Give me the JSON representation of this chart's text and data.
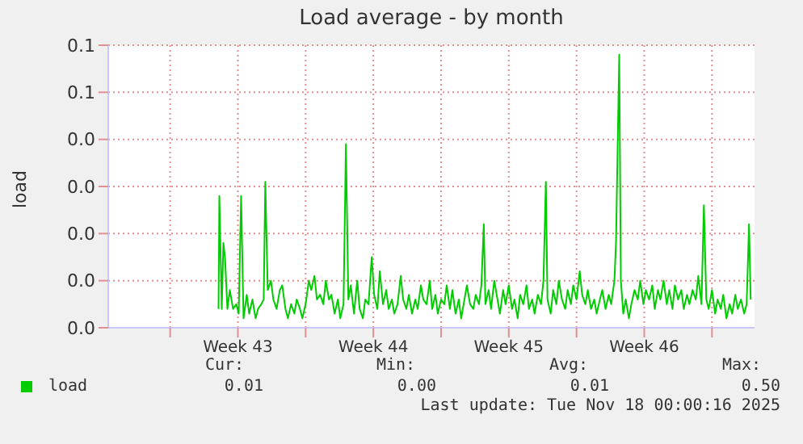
{
  "chart_data": {
    "type": "line",
    "title": "Load average - by month",
    "ylabel": "load",
    "x": [
      "2025-10-21T12:00",
      "2025-10-21T13:00",
      "2025-10-21T16:00",
      "2025-10-21T18:00",
      "2025-10-21T20:00",
      "2025-10-21T23:00",
      "2025-10-22T02:00",
      "2025-10-22T06:00",
      "2025-10-22T10:00",
      "2025-10-22T13:00",
      "2025-10-22T16:00",
      "2025-10-22T19:00",
      "2025-10-22T23:00",
      "2025-10-23T02:00",
      "2025-10-23T06:00",
      "2025-10-23T10:00",
      "2025-10-23T13:00",
      "2025-10-23T17:00",
      "2025-10-23T20:00",
      "2025-10-23T22:00",
      "2025-10-24T01:00",
      "2025-10-24T05:00",
      "2025-10-24T08:00",
      "2025-10-24T12:00",
      "2025-10-24T16:00",
      "2025-10-24T19:00",
      "2025-10-24T23:00",
      "2025-10-25T02:00",
      "2025-10-25T06:00",
      "2025-10-25T10:00",
      "2025-10-25T13:00",
      "2025-10-25T17:00",
      "2025-10-25T20:00",
      "2025-10-26T00:00",
      "2025-10-26T04:00",
      "2025-10-26T07:00",
      "2025-10-26T11:00",
      "2025-10-26T14:00",
      "2025-10-26T18:00",
      "2025-10-26T22:00",
      "2025-10-27T01:00",
      "2025-10-27T05:00",
      "2025-10-27T08:00",
      "2025-10-27T12:00",
      "2025-10-27T16:00",
      "2025-10-27T19:00",
      "2025-10-27T23:00",
      "2025-10-28T02:00",
      "2025-10-28T05:00",
      "2025-10-28T08:00",
      "2025-10-28T12:00",
      "2025-10-28T16:00",
      "2025-10-28T19:00",
      "2025-10-28T23:00",
      "2025-10-29T02:00",
      "2025-10-29T06:00",
      "2025-10-29T10:00",
      "2025-10-29T13:00",
      "2025-10-29T17:00",
      "2025-10-29T20:00",
      "2025-10-30T00:00",
      "2025-10-30T04:00",
      "2025-10-30T07:00",
      "2025-10-30T11:00",
      "2025-10-30T14:00",
      "2025-10-30T18:00",
      "2025-10-30T22:00",
      "2025-10-31T01:00",
      "2025-10-31T05:00",
      "2025-10-31T08:00",
      "2025-10-31T12:00",
      "2025-10-31T16:00",
      "2025-10-31T19:00",
      "2025-10-31T23:00",
      "2025-11-01T02:00",
      "2025-11-01T06:00",
      "2025-11-01T10:00",
      "2025-11-01T13:00",
      "2025-11-01T17:00",
      "2025-11-01T20:00",
      "2025-11-02T00:00",
      "2025-11-02T04:00",
      "2025-11-02T07:00",
      "2025-11-02T11:00",
      "2025-11-02T14:00",
      "2025-11-02T18:00",
      "2025-11-02T22:00",
      "2025-11-03T01:00",
      "2025-11-03T05:00",
      "2025-11-03T08:00",
      "2025-11-03T12:00",
      "2025-11-03T16:00",
      "2025-11-03T19:00",
      "2025-11-03T23:00",
      "2025-11-04T02:00",
      "2025-11-04T05:00",
      "2025-11-04T07:00",
      "2025-11-04T11:00",
      "2025-11-04T14:00",
      "2025-11-04T18:00",
      "2025-11-04T22:00",
      "2025-11-05T01:00",
      "2025-11-05T05:00",
      "2025-11-05T08:00",
      "2025-11-05T12:00",
      "2025-11-05T16:00",
      "2025-11-05T19:00",
      "2025-11-05T23:00",
      "2025-11-06T02:00",
      "2025-11-06T06:00",
      "2025-11-06T10:00",
      "2025-11-06T13:00",
      "2025-11-06T17:00",
      "2025-11-06T20:00",
      "2025-11-07T00:00",
      "2025-11-07T04:00",
      "2025-11-07T07:00",
      "2025-11-07T10:00",
      "2025-11-07T12:00",
      "2025-11-07T16:00",
      "2025-11-07T19:00",
      "2025-11-07T23:00",
      "2025-11-08T02:00",
      "2025-11-08T06:00",
      "2025-11-08T10:00",
      "2025-11-08T13:00",
      "2025-11-08T17:00",
      "2025-11-08T20:00",
      "2025-11-09T00:00",
      "2025-11-09T04:00",
      "2025-11-09T07:00",
      "2025-11-09T11:00",
      "2025-11-09T14:00",
      "2025-11-09T18:00",
      "2025-11-09T22:00",
      "2025-11-10T01:00",
      "2025-11-10T05:00",
      "2025-11-10T08:00",
      "2025-11-10T12:00",
      "2025-11-10T16:00",
      "2025-11-10T19:00",
      "2025-11-10T23:00",
      "2025-11-11T01:00",
      "2025-11-11T05:00",
      "2025-11-11T07:00",
      "2025-11-11T10:00",
      "2025-11-11T13:00",
      "2025-11-11T17:00",
      "2025-11-11T20:00",
      "2025-11-12T00:00",
      "2025-11-12T04:00",
      "2025-11-12T07:00",
      "2025-11-12T11:00",
      "2025-11-12T14:00",
      "2025-11-12T18:00",
      "2025-11-12T22:00",
      "2025-11-13T01:00",
      "2025-11-13T05:00",
      "2025-11-13T08:00",
      "2025-11-13T12:00",
      "2025-11-13T16:00",
      "2025-11-13T19:00",
      "2025-11-13T23:00",
      "2025-11-14T02:00",
      "2025-11-14T06:00",
      "2025-11-14T10:00",
      "2025-11-14T13:00",
      "2025-11-14T17:00",
      "2025-11-14T20:00",
      "2025-11-15T00:00",
      "2025-11-15T04:00",
      "2025-11-15T07:00",
      "2025-11-15T11:00",
      "2025-11-15T14:00",
      "2025-11-15T17:00",
      "2025-11-15T20:00",
      "2025-11-16T00:00",
      "2025-11-16T04:00",
      "2025-11-16T07:00",
      "2025-11-16T11:00",
      "2025-11-16T14:00",
      "2025-11-16T18:00",
      "2025-11-16T22:00",
      "2025-11-17T01:00",
      "2025-11-17T05:00",
      "2025-11-17T08:00",
      "2025-11-17T12:00",
      "2025-11-17T16:00",
      "2025-11-17T19:00",
      "2025-11-17T22:00",
      "2025-11-18T00:00"
    ],
    "series": [
      {
        "name": "load",
        "color": "#00cc00",
        "values": [
          0.004,
          0.028,
          0.004,
          0.018,
          0.015,
          0.004,
          0.008,
          0.004,
          0.005,
          0.003,
          0.028,
          0.002,
          0.007,
          0.003,
          0.006,
          0.002,
          0.004,
          0.005,
          0.006,
          0.031,
          0.008,
          0.01,
          0.006,
          0.004,
          0.008,
          0.009,
          0.004,
          0.002,
          0.005,
          0.003,
          0.006,
          0.004,
          0.002,
          0.005,
          0.01,
          0.008,
          0.011,
          0.006,
          0.007,
          0.005,
          0.01,
          0.006,
          0.007,
          0.003,
          0.006,
          0.002,
          0.005,
          0.039,
          0.006,
          0.009,
          0.003,
          0.01,
          0.004,
          0.002,
          0.006,
          0.005,
          0.015,
          0.007,
          0.004,
          0.012,
          0.005,
          0.008,
          0.004,
          0.006,
          0.003,
          0.005,
          0.011,
          0.006,
          0.004,
          0.007,
          0.003,
          0.006,
          0.004,
          0.009,
          0.006,
          0.005,
          0.01,
          0.004,
          0.007,
          0.003,
          0.006,
          0.005,
          0.009,
          0.004,
          0.008,
          0.003,
          0.006,
          0.002,
          0.006,
          0.009,
          0.005,
          0.004,
          0.007,
          0.005,
          0.009,
          0.022,
          0.005,
          0.008,
          0.004,
          0.01,
          0.006,
          0.003,
          0.008,
          0.005,
          0.009,
          0.004,
          0.006,
          0.002,
          0.007,
          0.005,
          0.009,
          0.004,
          0.006,
          0.003,
          0.007,
          0.005,
          0.01,
          0.031,
          0.006,
          0.003,
          0.008,
          0.005,
          0.01,
          0.006,
          0.004,
          0.008,
          0.005,
          0.009,
          0.006,
          0.012,
          0.007,
          0.005,
          0.008,
          0.004,
          0.006,
          0.003,
          0.006,
          0.008,
          0.004,
          0.007,
          0.005,
          0.01,
          0.018,
          0.058,
          0.01,
          0.003,
          0.006,
          0.002,
          0.005,
          0.008,
          0.006,
          0.01,
          0.005,
          0.008,
          0.006,
          0.009,
          0.004,
          0.008,
          0.006,
          0.01,
          0.005,
          0.008,
          0.004,
          0.009,
          0.006,
          0.008,
          0.004,
          0.007,
          0.005,
          0.008,
          0.006,
          0.011,
          0.005,
          0.026,
          0.006,
          0.004,
          0.008,
          0.003,
          0.006,
          0.004,
          0.007,
          0.002,
          0.005,
          0.003,
          0.007,
          0.004,
          0.006,
          0.003,
          0.005,
          0.022,
          0.006
        ]
      }
    ],
    "xlim": [
      "2025-10-15T19:12",
      "2025-11-18T04:48"
    ],
    "xticks": [
      {
        "value": "2025-10-19",
        "label": null
      },
      {
        "value": "2025-10-22T12:00",
        "label": "Week 43"
      },
      {
        "value": "2025-10-26",
        "label": null
      },
      {
        "value": "2025-10-29T12:00",
        "label": "Week 44"
      },
      {
        "value": "2025-11-02",
        "label": null
      },
      {
        "value": "2025-11-05T12:00",
        "label": "Week 45"
      },
      {
        "value": "2025-11-09",
        "label": null
      },
      {
        "value": "2025-11-12T12:00",
        "label": "Week 46"
      },
      {
        "value": "2025-11-16",
        "label": null
      }
    ],
    "ylim": [
      0,
      0.06
    ],
    "yticks": [
      {
        "value": 0,
        "label": "0.0"
      },
      {
        "value": 0.01,
        "label": "0.0"
      },
      {
        "value": 0.02,
        "label": "0.0"
      },
      {
        "value": 0.03,
        "label": "0.0"
      },
      {
        "value": 0.04,
        "label": "0.0"
      },
      {
        "value": 0.05,
        "label": "0.1"
      },
      {
        "value": 0.06,
        "label": "0.1"
      }
    ],
    "grid": true,
    "legend": "bottom",
    "marker": "none",
    "line_style": "solid",
    "annotations": [
      "Cur:",
      "Min:",
      "Avg:",
      "Max:",
      "0.01",
      "0.00",
      "0.01",
      "0.50",
      "Last update: Tue Nov 18 00:00:16 2025"
    ]
  }
}
